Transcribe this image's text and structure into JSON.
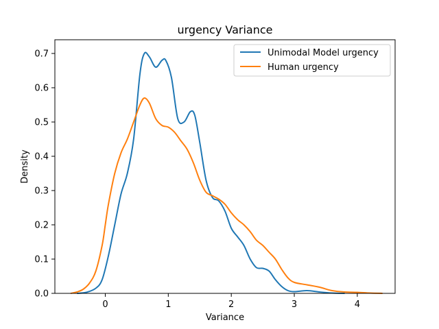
{
  "chart_data": {
    "type": "line",
    "title": "urgency Variance",
    "xlabel": "Variance",
    "ylabel": "Density",
    "xlim": [
      -0.8,
      4.6
    ],
    "ylim": [
      0,
      0.74
    ],
    "xticks": [
      0,
      1,
      2,
      3,
      4
    ],
    "yticks": [
      0.0,
      0.1,
      0.2,
      0.3,
      0.4,
      0.5,
      0.6,
      0.7
    ],
    "grid": false,
    "legend_position": "top-right",
    "series": [
      {
        "name": "Unimodal Model urgency",
        "color": "#1f77b4",
        "x": [
          -0.45,
          -0.3,
          -0.15,
          -0.05,
          0.05,
          0.15,
          0.25,
          0.35,
          0.45,
          0.55,
          0.62,
          0.7,
          0.8,
          0.9,
          0.96,
          1.05,
          1.15,
          1.25,
          1.35,
          1.42,
          1.5,
          1.6,
          1.7,
          1.8,
          1.9,
          2.0,
          2.1,
          2.2,
          2.3,
          2.4,
          2.5,
          2.6,
          2.7,
          2.8,
          2.9,
          3.0,
          3.2,
          3.4,
          3.6,
          3.8
        ],
        "y": [
          0.0,
          0.003,
          0.015,
          0.04,
          0.11,
          0.2,
          0.29,
          0.35,
          0.45,
          0.64,
          0.7,
          0.69,
          0.66,
          0.68,
          0.68,
          0.63,
          0.51,
          0.5,
          0.53,
          0.52,
          0.44,
          0.33,
          0.28,
          0.27,
          0.24,
          0.19,
          0.165,
          0.14,
          0.1,
          0.075,
          0.073,
          0.065,
          0.04,
          0.02,
          0.008,
          0.005,
          0.008,
          0.004,
          0.001,
          0.0
        ]
      },
      {
        "name": "Human urgency",
        "color": "#ff7f0e",
        "x": [
          -0.55,
          -0.45,
          -0.35,
          -0.25,
          -0.15,
          -0.05,
          0.0,
          0.05,
          0.15,
          0.25,
          0.35,
          0.45,
          0.55,
          0.62,
          0.7,
          0.8,
          0.9,
          1.0,
          1.1,
          1.2,
          1.3,
          1.4,
          1.5,
          1.6,
          1.7,
          1.8,
          1.9,
          2.0,
          2.1,
          2.2,
          2.3,
          2.4,
          2.5,
          2.6,
          2.7,
          2.8,
          2.9,
          3.0,
          3.2,
          3.4,
          3.6,
          3.8,
          4.0,
          4.2,
          4.4
        ],
        "y": [
          0.0,
          0.004,
          0.012,
          0.03,
          0.065,
          0.14,
          0.2,
          0.26,
          0.35,
          0.41,
          0.45,
          0.5,
          0.55,
          0.57,
          0.555,
          0.51,
          0.49,
          0.485,
          0.47,
          0.445,
          0.42,
          0.38,
          0.33,
          0.295,
          0.285,
          0.275,
          0.26,
          0.235,
          0.215,
          0.2,
          0.18,
          0.155,
          0.14,
          0.12,
          0.1,
          0.07,
          0.045,
          0.032,
          0.025,
          0.018,
          0.008,
          0.004,
          0.003,
          0.001,
          0.0
        ]
      }
    ]
  }
}
